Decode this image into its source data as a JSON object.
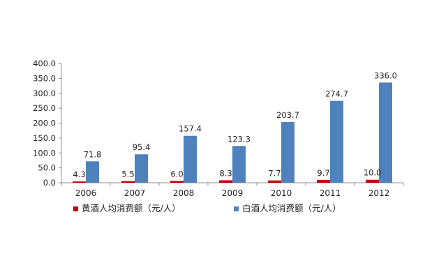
{
  "chart_data": {
    "type": "bar",
    "categories": [
      "2006",
      "2007",
      "2008",
      "2009",
      "2010",
      "2011",
      "2012"
    ],
    "series": [
      {
        "name": "黄酒人均消费额（元/人）",
        "color": "#C00000",
        "values": [
          4.3,
          5.5,
          6.0,
          8.3,
          7.7,
          9.7,
          10.0
        ],
        "labels": [
          "4.3",
          "5.5",
          "6.0",
          "8.3",
          "7.7",
          "9.7",
          "10.0"
        ]
      },
      {
        "name": "白酒人均消费额（元/人）",
        "color": "#4F81BD",
        "values": [
          71.8,
          95.4,
          157.4,
          123.3,
          203.7,
          274.7,
          336.0
        ],
        "labels": [
          "71.8",
          "95.4",
          "157.4",
          "123.3",
          "203.7",
          "274.7",
          "336.0"
        ]
      }
    ],
    "title": "",
    "xlabel": "",
    "ylabel": "",
    "ylim": [
      0,
      400
    ],
    "yticks": [
      "0.0",
      "50.0",
      "100.0",
      "150.0",
      "200.0",
      "250.0",
      "300.0",
      "350.0",
      "400.0"
    ],
    "grid": false,
    "legend_position": "bottom"
  }
}
